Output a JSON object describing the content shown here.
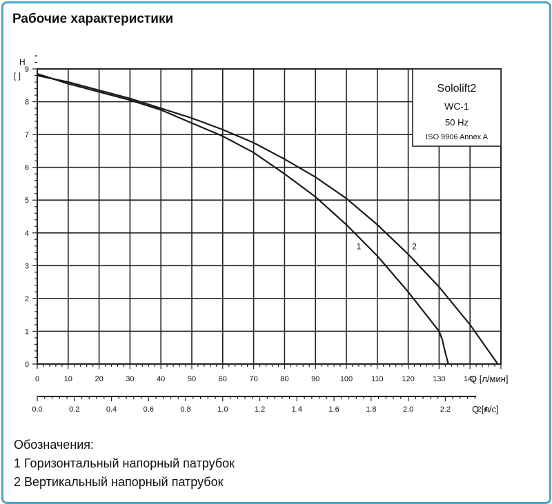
{
  "page": {
    "title": "Рабочие характеристики",
    "legend_header": "Обозначения:",
    "legend_items": [
      "1 Горизонтальный напорный патрубок",
      "2 Вертикальный напорный патрубок"
    ]
  },
  "chart_data": {
    "type": "line",
    "title": "",
    "info_box": [
      "Sololift2",
      "WC-1",
      "50 Hz",
      "ISO 9906 Annex A"
    ],
    "ylabel": "H",
    "yunit": "[ ]",
    "xlabel": "Q [л/мин]",
    "x2label": "Q [л/с]",
    "ylim": [
      0,
      9
    ],
    "xlim": [
      0,
      150
    ],
    "x2lim": [
      0,
      2.5
    ],
    "y_ticks": [
      "0",
      "1",
      "2",
      "3",
      "4",
      "5",
      "6",
      "7",
      "8",
      "9"
    ],
    "x_ticks": [
      "0",
      "10",
      "20",
      "30",
      "40",
      "50",
      "60",
      "70",
      "80",
      "90",
      "100",
      "110",
      "120",
      "130",
      "140"
    ],
    "x2_ticks": [
      "0.0",
      "0.2",
      "0.4",
      "0.6",
      "0.8",
      "1.0",
      "1.2",
      "1.4",
      "1.6",
      "1.8",
      "2.0",
      "2.2",
      "2.4"
    ],
    "grid": true,
    "series": [
      {
        "name": "1",
        "x": [
          0,
          10,
          20,
          30,
          40,
          50,
          60,
          70,
          80,
          90,
          100,
          110,
          120,
          130,
          131,
          132,
          133
        ],
        "y": [
          8.85,
          8.55,
          8.3,
          8.05,
          7.75,
          7.35,
          6.95,
          6.45,
          5.8,
          5.1,
          4.25,
          3.3,
          2.2,
          1.0,
          0.75,
          0.35,
          0.0
        ]
      },
      {
        "name": "2",
        "x": [
          0,
          10,
          20,
          30,
          40,
          50,
          60,
          70,
          80,
          90,
          100,
          110,
          120,
          130,
          140,
          149
        ],
        "y": [
          8.8,
          8.6,
          8.35,
          8.1,
          7.8,
          7.5,
          7.15,
          6.75,
          6.25,
          5.7,
          5.05,
          4.25,
          3.35,
          2.35,
          1.2,
          0.0
        ]
      }
    ],
    "series_label_positions": [
      {
        "name": "1",
        "x": 104,
        "y": 3.5
      },
      {
        "name": "2",
        "x": 122,
        "y": 3.5
      }
    ]
  }
}
